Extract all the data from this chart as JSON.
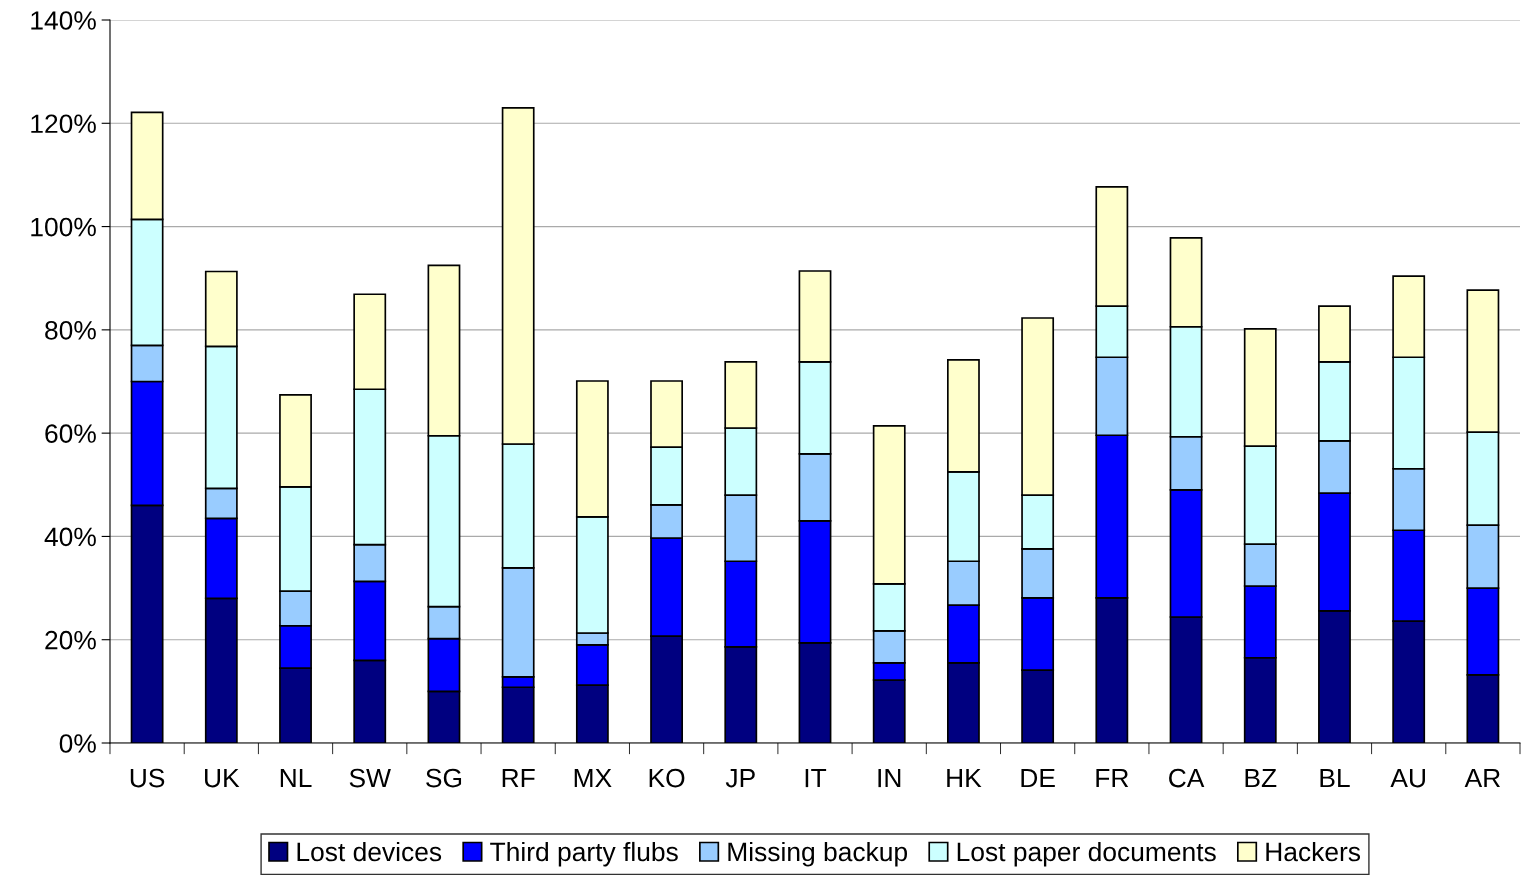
{
  "chart_data": {
    "type": "bar",
    "stacked": true,
    "categories": [
      "US",
      "UK",
      "NL",
      "SW",
      "SG",
      "RF",
      "MX",
      "KO",
      "JP",
      "IT",
      "IN",
      "HK",
      "DE",
      "FR",
      "CA",
      "BZ",
      "BL",
      "AU",
      "AR"
    ],
    "series": [
      {
        "name": "Lost devices",
        "color": "#000080",
        "values": [
          46,
          28,
          14.5,
          16,
          10,
          10.8,
          11.2,
          20.7,
          18.6,
          19.4,
          12.2,
          15.5,
          14.1,
          28.1,
          24.4,
          16.5,
          25.6,
          23.6,
          13.2
        ]
      },
      {
        "name": "Third party flubs",
        "color": "#0000ff",
        "values": [
          24,
          15.5,
          8.2,
          15.3,
          10.2,
          2,
          7.8,
          19,
          16.6,
          23.6,
          3.3,
          11.2,
          14,
          31.5,
          24.6,
          13.9,
          22.8,
          17.6,
          16.8
        ]
      },
      {
        "name": "Missing backup",
        "color": "#99ccff",
        "values": [
          7,
          5.8,
          6.7,
          7.1,
          6.2,
          21.1,
          2.3,
          6.4,
          12.8,
          13,
          6.2,
          8.5,
          9.5,
          15.1,
          10.3,
          8.1,
          10.1,
          11.9,
          12.2
        ]
      },
      {
        "name": "Lost paper documents",
        "color": "#ccffff",
        "values": [
          24.4,
          27.5,
          20.2,
          30.1,
          33.1,
          24,
          22.5,
          11.2,
          13,
          17.8,
          9.1,
          17.3,
          10.4,
          9.9,
          21.3,
          19,
          15.3,
          21.6,
          18
        ]
      },
      {
        "name": "Hackers",
        "color": "#ffffcc",
        "values": [
          20.7,
          14.5,
          17.8,
          18.4,
          33,
          65.1,
          26.3,
          12.8,
          12.8,
          17.6,
          30.6,
          21.7,
          34.3,
          23.1,
          17.2,
          22.7,
          10.8,
          15.7,
          27.5
        ]
      }
    ],
    "ylim": [
      0,
      140
    ],
    "yticks": [
      {
        "value": 0,
        "label": "0%"
      },
      {
        "value": 20,
        "label": "20%"
      },
      {
        "value": 40,
        "label": "40%"
      },
      {
        "value": 60,
        "label": "60%"
      },
      {
        "value": 80,
        "label": "80%"
      },
      {
        "value": 100,
        "label": "100%"
      },
      {
        "value": 120,
        "label": "120%"
      },
      {
        "value": 140,
        "label": "140%"
      }
    ],
    "grid": "y",
    "legend": "bottom"
  }
}
